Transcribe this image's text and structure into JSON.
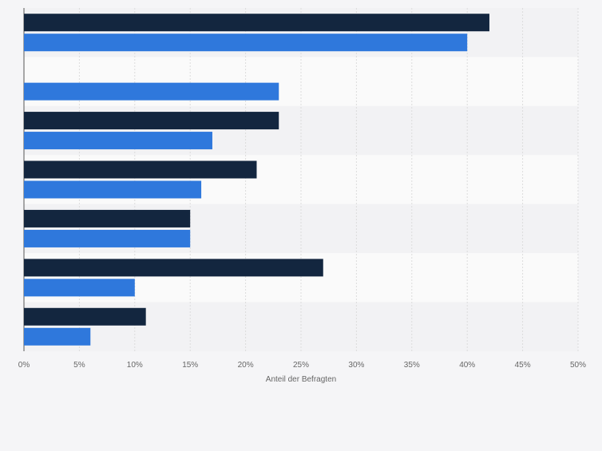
{
  "chart_data": {
    "type": "bar",
    "orientation": "horizontal",
    "title": "",
    "xlabel": "Anteil der Befragten",
    "ylabel": "",
    "xlim": [
      0,
      50
    ],
    "x_ticks": [
      0,
      5,
      10,
      15,
      20,
      25,
      30,
      35,
      40,
      45,
      50
    ],
    "x_tick_labels": [
      "0%",
      "5%",
      "10%",
      "15%",
      "20%",
      "25%",
      "30%",
      "35%",
      "40%",
      "45%",
      "50%"
    ],
    "categories": [
      "",
      "",
      "",
      "",
      "",
      "",
      ""
    ],
    "series": [
      {
        "color": "#13263f",
        "values": [
          42,
          null,
          23,
          21,
          15,
          27,
          11
        ]
      },
      {
        "color": "#2f78dc",
        "values": [
          40,
          23,
          17,
          16,
          15,
          10,
          6
        ]
      }
    ],
    "grid": true,
    "legend": "none"
  }
}
